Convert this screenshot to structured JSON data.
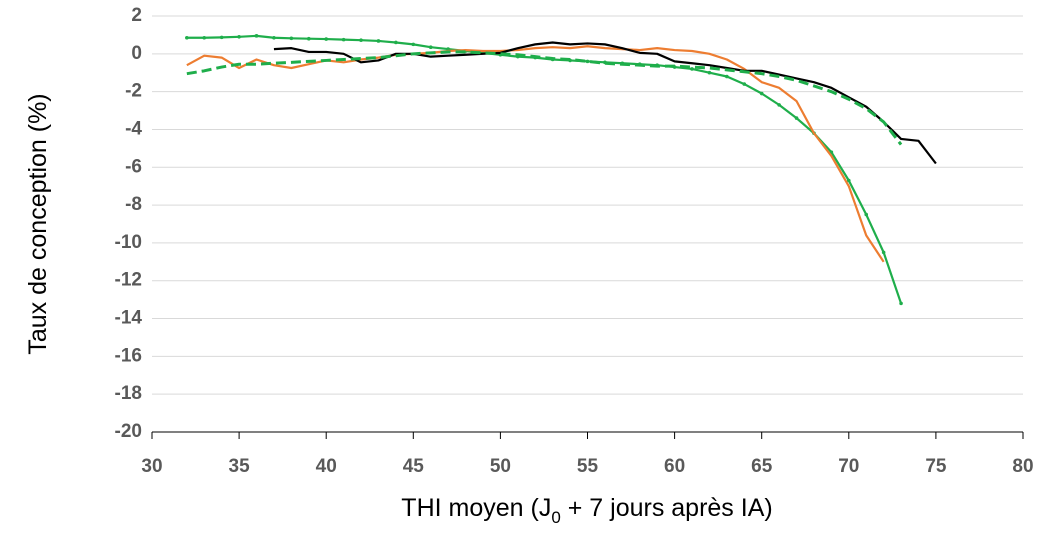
{
  "chart_data": {
    "type": "line",
    "x_label_parts": [
      "THI moyen (J",
      "0",
      " + 7 jours après IA)"
    ],
    "y_label": "Taux de conception (%)",
    "xlim": [
      30,
      80
    ],
    "xticks": [
      30,
      35,
      40,
      45,
      50,
      55,
      60,
      65,
      70,
      75,
      80
    ],
    "ylim": [
      -20,
      2
    ],
    "yticks": [
      -20,
      -18,
      -16,
      -14,
      -12,
      -10,
      -8,
      -6,
      -4,
      -2,
      0,
      2
    ],
    "grid": true,
    "series": [
      {
        "color": "#1fae4b",
        "marker": true,
        "dash": false,
        "x": [
          32,
          33,
          34,
          35,
          36,
          37,
          38,
          39,
          40,
          41,
          42,
          43,
          44,
          45,
          46,
          47,
          48,
          49,
          50,
          51,
          52,
          53,
          54,
          55,
          56,
          57,
          58,
          59,
          60,
          61,
          62,
          63,
          64,
          65,
          66,
          67,
          68,
          69,
          70,
          71,
          72,
          73
        ],
        "values": [
          0.85,
          0.85,
          0.87,
          0.9,
          0.95,
          0.85,
          0.82,
          0.8,
          0.78,
          0.75,
          0.72,
          0.68,
          0.6,
          0.5,
          0.35,
          0.25,
          0.15,
          0.05,
          -0.05,
          -0.15,
          -0.2,
          -0.3,
          -0.35,
          -0.4,
          -0.45,
          -0.5,
          -0.55,
          -0.6,
          -0.7,
          -0.8,
          -1.0,
          -1.2,
          -1.6,
          -2.1,
          -2.7,
          -3.4,
          -4.2,
          -5.2,
          -6.7,
          -8.5,
          -10.5,
          -13.2
        ]
      },
      {
        "color": "#ed7d31",
        "marker": false,
        "dash": false,
        "x": [
          32,
          33,
          34,
          35,
          36,
          37,
          38,
          39,
          40,
          41,
          42,
          43,
          44,
          45,
          46,
          47,
          48,
          49,
          50,
          51,
          52,
          53,
          54,
          55,
          56,
          57,
          58,
          59,
          60,
          61,
          62,
          63,
          64,
          65,
          66,
          67,
          68,
          69,
          70,
          71,
          72
        ],
        "values": [
          -0.6,
          -0.1,
          -0.2,
          -0.75,
          -0.3,
          -0.6,
          -0.75,
          -0.55,
          -0.35,
          -0.45,
          -0.3,
          -0.2,
          -0.05,
          0.0,
          0.05,
          0.15,
          0.2,
          0.15,
          0.15,
          0.2,
          0.3,
          0.35,
          0.3,
          0.4,
          0.3,
          0.25,
          0.2,
          0.3,
          0.2,
          0.15,
          0.0,
          -0.3,
          -0.8,
          -1.5,
          -1.8,
          -2.5,
          -4.2,
          -5.4,
          -7.0,
          -9.6,
          -11.0
        ]
      },
      {
        "color": "#000000",
        "marker": false,
        "dash": false,
        "x": [
          37,
          38,
          39,
          40,
          41,
          42,
          43,
          44,
          45,
          46,
          47,
          48,
          49,
          50,
          51,
          52,
          53,
          54,
          55,
          56,
          57,
          58,
          59,
          60,
          61,
          62,
          63,
          64,
          65,
          66,
          67,
          68,
          69,
          70,
          71,
          72,
          73,
          74,
          75
        ],
        "values": [
          0.25,
          0.3,
          0.1,
          0.1,
          0.0,
          -0.45,
          -0.35,
          0.0,
          0.0,
          -0.15,
          -0.1,
          -0.05,
          0.0,
          0.05,
          0.3,
          0.5,
          0.6,
          0.5,
          0.55,
          0.5,
          0.3,
          0.05,
          0.0,
          -0.4,
          -0.5,
          -0.6,
          -0.75,
          -0.9,
          -0.9,
          -1.1,
          -1.3,
          -1.5,
          -1.8,
          -2.3,
          -2.8,
          -3.6,
          -4.5,
          -4.6,
          -5.8
        ]
      },
      {
        "color": "#1fae4b",
        "marker": false,
        "dash": true,
        "x": [
          32,
          33,
          34,
          35,
          36,
          37,
          38,
          39,
          40,
          41,
          42,
          43,
          44,
          45,
          46,
          47,
          48,
          49,
          50,
          51,
          52,
          53,
          54,
          55,
          56,
          57,
          58,
          59,
          60,
          61,
          62,
          63,
          64,
          65,
          66,
          67,
          68,
          69,
          70,
          71,
          72,
          73
        ],
        "values": [
          -1.05,
          -0.9,
          -0.7,
          -0.55,
          -0.55,
          -0.5,
          -0.45,
          -0.4,
          -0.35,
          -0.3,
          -0.25,
          -0.2,
          -0.1,
          0.0,
          0.05,
          0.1,
          0.1,
          0.05,
          0.0,
          -0.05,
          -0.15,
          -0.25,
          -0.3,
          -0.4,
          -0.5,
          -0.55,
          -0.6,
          -0.65,
          -0.65,
          -0.7,
          -0.75,
          -0.85,
          -0.95,
          -1.05,
          -1.2,
          -1.4,
          -1.7,
          -2.0,
          -2.4,
          -2.9,
          -3.6,
          -4.8
        ]
      }
    ]
  }
}
